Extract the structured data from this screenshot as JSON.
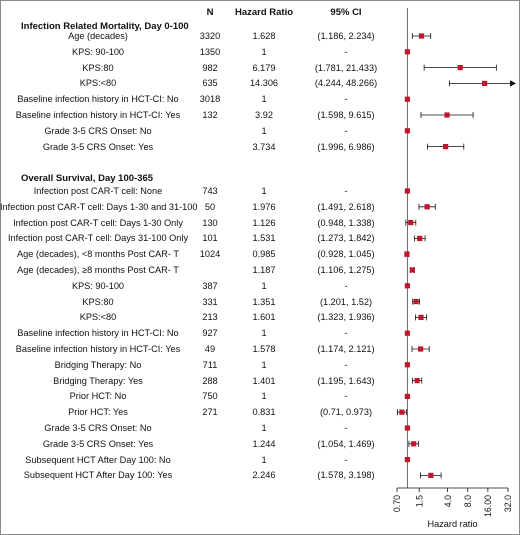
{
  "header": {
    "n": "N",
    "hazard_ratio": "Hazard Ratio",
    "ci": "95% CI"
  },
  "chart_data": {
    "type": "forest",
    "xlabel": "Hazard ratio",
    "x_scale": "log",
    "xlim": [
      0.7,
      32.0
    ],
    "x_ticks": [
      "0.70",
      "1.5",
      "4.0",
      "8.0",
      "16.00",
      "32.0"
    ],
    "x_tick_values": [
      0.7,
      1.5,
      4.0,
      8.0,
      16.0,
      32.0
    ],
    "reference_line": 1,
    "marker_color": "#c0162a",
    "sections": [
      {
        "title": "Infection Related Mortality, Day 0-100",
        "rows": [
          {
            "label": "Age (decades)",
            "n": "3320",
            "hr_text": "1.628",
            "ci_text": "(1.186, 2.234)",
            "hr": 1.628,
            "lo": 1.186,
            "hi": 2.234
          },
          {
            "label": "KPS: 90-100",
            "n": "1350",
            "hr_text": "1",
            "ci_text": "-",
            "hr": 1
          },
          {
            "label": "KPS:80",
            "n": "982",
            "hr_text": "6.179",
            "ci_text": "(1.781, 21.433)",
            "hr": 6.179,
            "lo": 1.781,
            "hi": 21.433
          },
          {
            "label": "KPS:<80",
            "n": "635",
            "hr_text": "14.306",
            "ci_text": "(4.244, 48.266)",
            "hr": 14.306,
            "lo": 4.244,
            "hi": 48.266,
            "arrow": true
          },
          {
            "label": "Baseline infection history in HCT-CI: No",
            "n": "3018",
            "hr_text": "1",
            "ci_text": "-",
            "hr": 1
          },
          {
            "label": "Baseline infection history in HCT-CI: Yes",
            "n": "132",
            "hr_text": "3.92",
            "ci_text": "(1.598, 9.615)",
            "hr": 3.92,
            "lo": 1.598,
            "hi": 9.615
          },
          {
            "label": "Grade 3-5 CRS Onset: No",
            "n": "",
            "hr_text": "1",
            "ci_text": "-",
            "hr": 1
          },
          {
            "label": "Grade 3-5 CRS Onset: Yes",
            "n": "",
            "hr_text": "3.734",
            "ci_text": "(1.996, 6.986)",
            "hr": 3.734,
            "lo": 1.996,
            "hi": 6.986
          }
        ]
      },
      {
        "title": "Overall Survival, Day 100-365",
        "rows": [
          {
            "label": "Infection post CAR-T cell: None",
            "n": "743",
            "hr_text": "1",
            "ci_text": "-",
            "hr": 1
          },
          {
            "label": "Infection post CAR-T cell: Days 1-30 and 31-100",
            "n": "50",
            "hr_text": "1.976",
            "ci_text": "(1.491, 2.618)",
            "hr": 1.976,
            "lo": 1.491,
            "hi": 2.618
          },
          {
            "label": "Infection post CAR-T cell: Days 1-30 Only",
            "n": "130",
            "hr_text": "1.126",
            "ci_text": "(0.948, 1.338)",
            "hr": 1.126,
            "lo": 0.948,
            "hi": 1.338
          },
          {
            "label": "Infection post CAR-T cell: Days 31-100 Only",
            "n": "101",
            "hr_text": "1.531",
            "ci_text": "(1.273, 1.842)",
            "hr": 1.531,
            "lo": 1.273,
            "hi": 1.842
          },
          {
            "label": "Age (decades), <8 months Post CAR- T",
            "n": "1024",
            "hr_text": "0.985",
            "ci_text": "(0.928, 1.045)",
            "hr": 0.985,
            "lo": 0.928,
            "hi": 1.045
          },
          {
            "label": "Age (decades), ≥8 months Post CAR- T",
            "n": "",
            "hr_text": "1.187",
            "ci_text": "(1.106, 1.275)",
            "hr": 1.187,
            "lo": 1.106,
            "hi": 1.275
          },
          {
            "label": "KPS: 90-100",
            "n": "387",
            "hr_text": "1",
            "ci_text": "-",
            "hr": 1
          },
          {
            "label": "KPS:80",
            "n": "331",
            "hr_text": "1.351",
            "ci_text": "(1.201, 1.52)",
            "hr": 1.351,
            "lo": 1.201,
            "hi": 1.52
          },
          {
            "label": "KPS:<80",
            "n": "213",
            "hr_text": "1.601",
            "ci_text": "(1.323, 1.936)",
            "hr": 1.601,
            "lo": 1.323,
            "hi": 1.936
          },
          {
            "label": "Baseline infection history in HCT-CI: No",
            "n": "927",
            "hr_text": "1",
            "ci_text": "-",
            "hr": 1
          },
          {
            "label": "Baseline infection history in HCT-CI: Yes",
            "n": "49",
            "hr_text": "1.578",
            "ci_text": "(1.174, 2.121)",
            "hr": 1.578,
            "lo": 1.174,
            "hi": 2.121
          },
          {
            "label": "Bridging Therapy: No",
            "n": "711",
            "hr_text": "1",
            "ci_text": "-",
            "hr": 1
          },
          {
            "label": "Bridging Therapy: Yes",
            "n": "288",
            "hr_text": "1.401",
            "ci_text": "(1.195, 1.643)",
            "hr": 1.401,
            "lo": 1.195,
            "hi": 1.643
          },
          {
            "label": "Prior HCT: No",
            "n": "750",
            "hr_text": "1",
            "ci_text": "-",
            "hr": 1
          },
          {
            "label": "Prior HCT: Yes",
            "n": "271",
            "hr_text": "0.831",
            "ci_text": "(0.71, 0.973)",
            "hr": 0.831,
            "lo": 0.71,
            "hi": 0.973
          },
          {
            "label": "Grade 3-5 CRS Onset: No",
            "n": "",
            "hr_text": "1",
            "ci_text": "-",
            "hr": 1
          },
          {
            "label": "Grade 3-5 CRS Onset: Yes",
            "n": "",
            "hr_text": "1.244",
            "ci_text": "(1.054, 1.469)",
            "hr": 1.244,
            "lo": 1.054,
            "hi": 1.469
          },
          {
            "label": "Subsequent HCT After Day 100: No",
            "n": "",
            "hr_text": "1",
            "ci_text": "-",
            "hr": 1
          },
          {
            "label": "Subsequent HCT After Day 100: Yes",
            "n": "",
            "hr_text": "2.246",
            "ci_text": "(1.578, 3.198)",
            "hr": 2.246,
            "lo": 1.578,
            "hi": 3.198
          }
        ]
      }
    ]
  }
}
